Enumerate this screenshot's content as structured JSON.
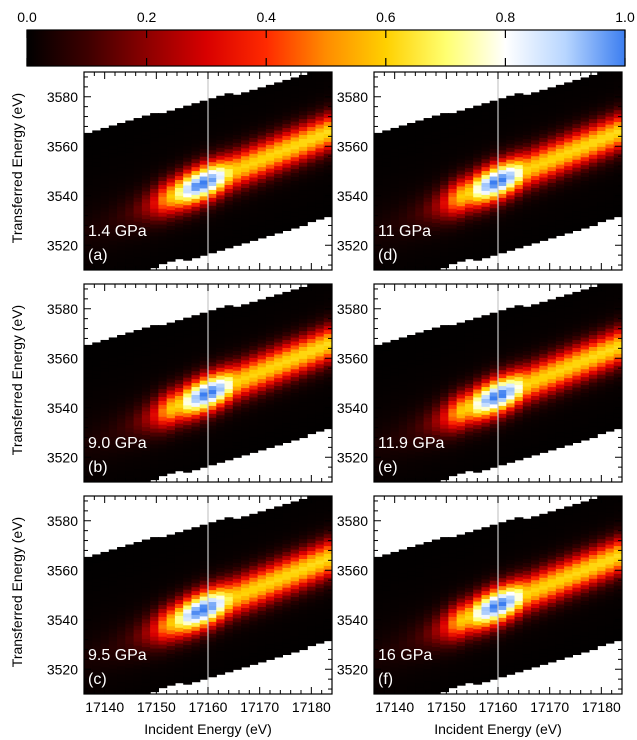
{
  "colorbar": {
    "ticks": [
      0.0,
      0.2,
      0.4,
      0.6,
      0.8,
      1.0
    ],
    "tick_labels": [
      "0.0",
      "0.2",
      "0.4",
      "0.6",
      "0.8",
      "1.0"
    ],
    "range": [
      0,
      1
    ],
    "colormap": [
      "#000000",
      "#3c0000",
      "#8c0000",
      "#d80000",
      "#ff2a00",
      "#ff8c00",
      "#ffd000",
      "#ffff70",
      "#ffffff",
      "#b8d6ff",
      "#3c7ef0"
    ]
  },
  "chart_data": {
    "type": "heatmap",
    "layout": "3x2",
    "xlabel": "Incident Energy (eV)",
    "ylabel": "Transferred Energy (eV)",
    "xlim": [
      17136,
      17184
    ],
    "ylim": [
      3510,
      3590
    ],
    "xticks": [
      17140,
      17150,
      17160,
      17170,
      17180
    ],
    "yticks": [
      3520,
      3540,
      3560,
      3580
    ],
    "reference_line_x": 17160,
    "panels": [
      {
        "label": "(a)",
        "pressure": "1.4 GPa",
        "peak_x": 17159,
        "peak_y": 3546,
        "width_factor": 1.0
      },
      {
        "label": "(b)",
        "pressure": "9.0 GPa",
        "peak_x": 17160,
        "peak_y": 3546,
        "width_factor": 1.0
      },
      {
        "label": "(c)",
        "pressure": "9.5 GPa",
        "peak_x": 17159,
        "peak_y": 3545,
        "width_factor": 1.05
      },
      {
        "label": "(d)",
        "pressure": "11 GPa",
        "peak_x": 17160,
        "peak_y": 3546,
        "width_factor": 1.0
      },
      {
        "label": "(e)",
        "pressure": "11.9 GPa",
        "peak_x": 17160,
        "peak_y": 3545,
        "width_factor": 1.0
      },
      {
        "label": "(f)",
        "pressure": "16 GPa",
        "peak_x": 17160,
        "peak_y": 3546,
        "width_factor": 1.0
      }
    ]
  }
}
